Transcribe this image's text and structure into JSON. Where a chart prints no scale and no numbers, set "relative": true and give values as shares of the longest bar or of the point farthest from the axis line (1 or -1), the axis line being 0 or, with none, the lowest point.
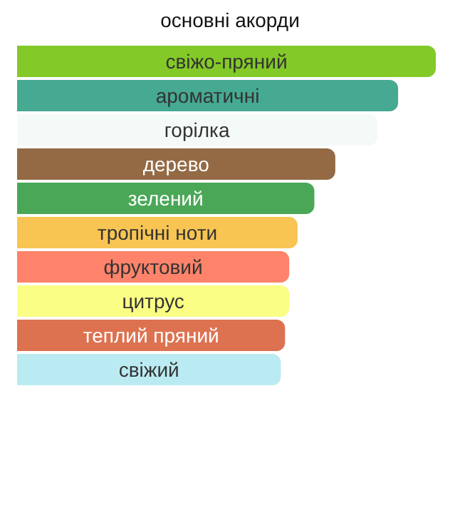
{
  "chart_data": {
    "type": "bar",
    "orientation": "horizontal",
    "relative": true,
    "title": "основні акорди",
    "tick_labels": false,
    "legend": false,
    "categories": [
      "свіжо-пряний",
      "ароматичні",
      "горілка",
      "дерево",
      "зелений",
      "тропічні ноти",
      "фруктовий",
      "цитрус",
      "теплий пряний",
      "свіжий"
    ],
    "values": [
      1,
      0.91,
      0.86,
      0.76,
      0.71,
      0.67,
      0.65,
      0.65,
      0.64,
      0.63
    ],
    "colors": [
      "#83c928",
      "#46a992",
      "#f4faf8",
      "#946a45",
      "#4aa757",
      "#f8c552",
      "#fe836a",
      "#fafe84",
      "#dd7250",
      "#bbebf2"
    ]
  }
}
